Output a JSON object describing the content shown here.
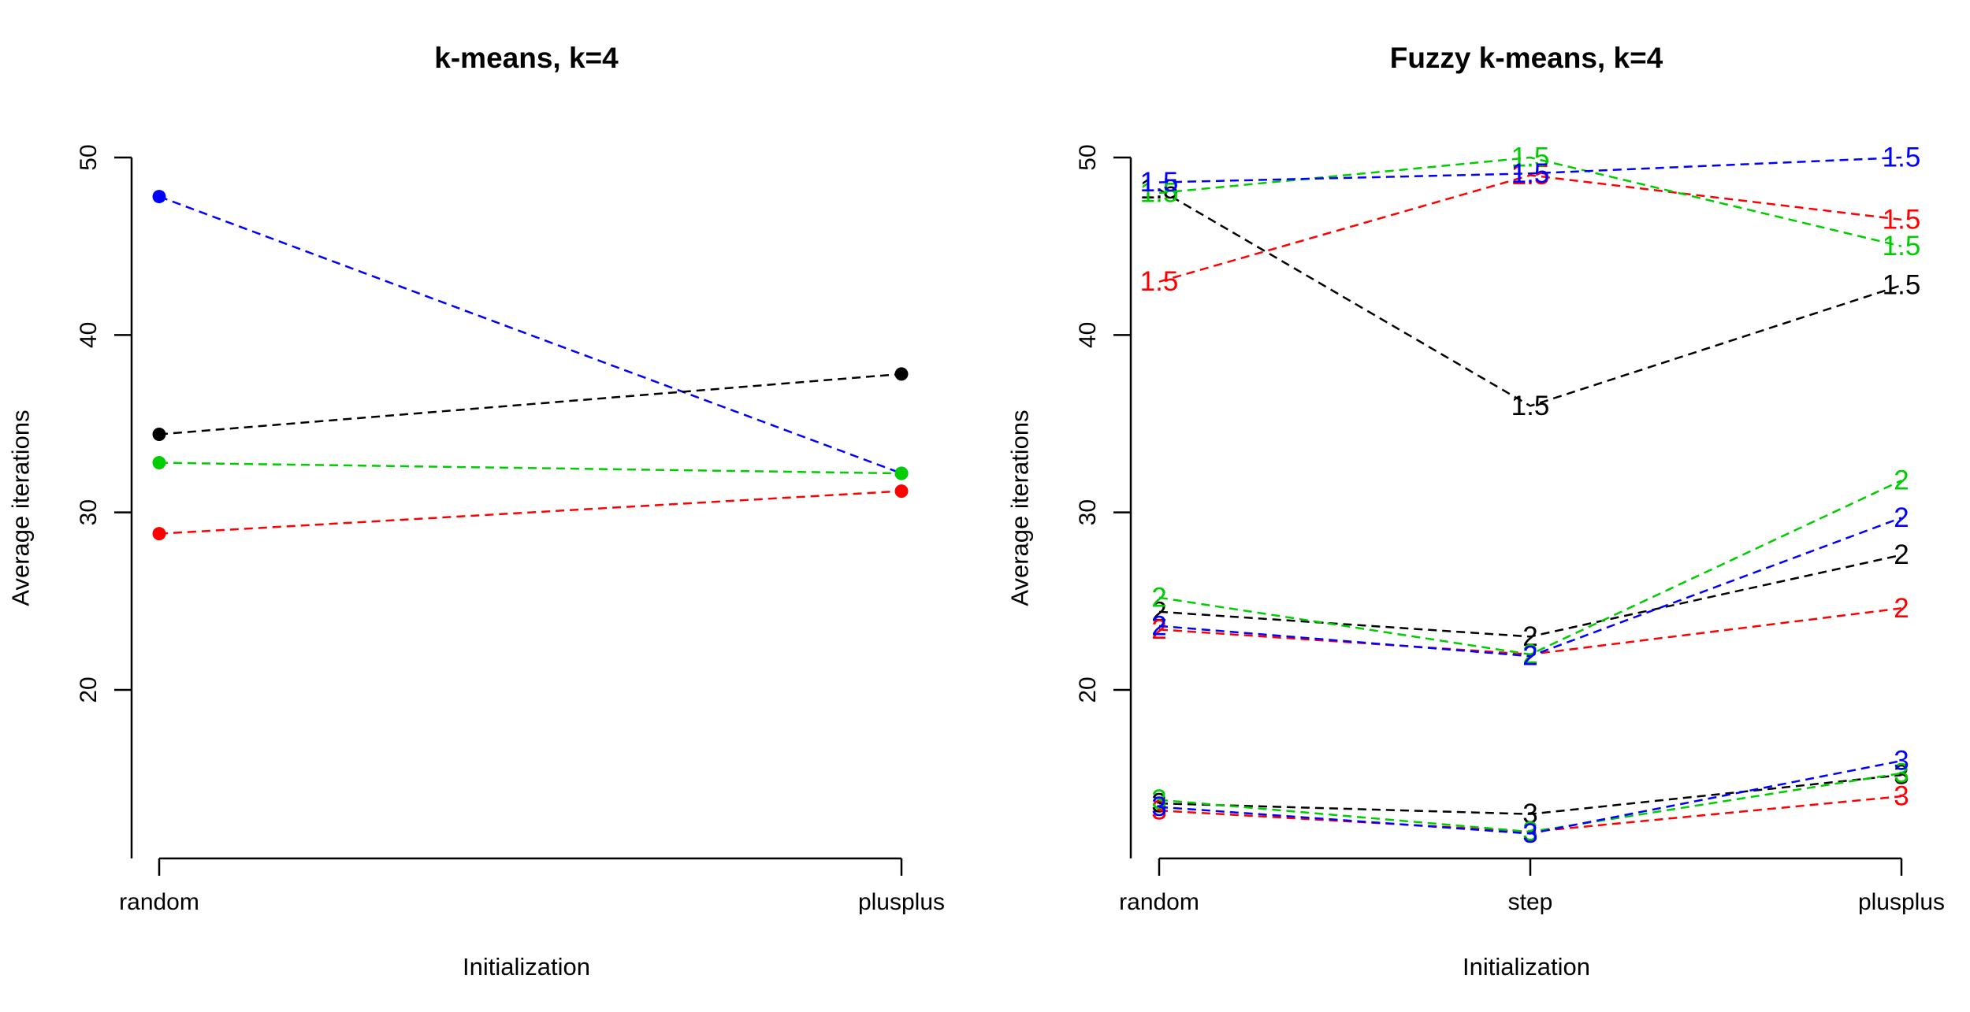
{
  "chart_data": [
    {
      "type": "line",
      "title": "k-means, k=4",
      "xlabel": "Initialization",
      "ylabel": "Average iterations",
      "categories": [
        "random",
        "plusplus"
      ],
      "yticks": [
        20,
        30,
        40,
        50
      ],
      "ylim": [
        10.5,
        50
      ],
      "marker": "point",
      "grid": false,
      "series": [
        {
          "color": "#0000ff",
          "values": [
            47.8,
            32.2
          ]
        },
        {
          "color": "#000000",
          "values": [
            34.4,
            37.8
          ]
        },
        {
          "color": "#00cd00",
          "values": [
            32.8,
            32.2
          ]
        },
        {
          "color": "#ff0000",
          "values": [
            28.8,
            31.2
          ]
        }
      ]
    },
    {
      "type": "line",
      "title": "Fuzzy k-means, k=4",
      "xlabel": "Initialization",
      "ylabel": "Average iterations",
      "categories": [
        "random",
        "step",
        "plusplus"
      ],
      "yticks": [
        20,
        30,
        40,
        50
      ],
      "ylim": [
        10.5,
        50
      ],
      "marker": "text",
      "grid": false,
      "series": [
        {
          "label": "1.5",
          "color": "#000000",
          "values": [
            48.2,
            36.0,
            42.8
          ]
        },
        {
          "label": "1.5",
          "color": "#ff0000",
          "values": [
            43.0,
            49.0,
            46.5
          ]
        },
        {
          "label": "1.5",
          "color": "#00cd00",
          "values": [
            48.0,
            50.0,
            45.0
          ]
        },
        {
          "label": "1.5",
          "color": "#0000ff",
          "values": [
            48.6,
            49.1,
            50.0
          ]
        },
        {
          "label": "2",
          "color": "#000000",
          "values": [
            24.4,
            23.0,
            27.6
          ]
        },
        {
          "label": "2",
          "color": "#ff0000",
          "values": [
            23.4,
            22.0,
            24.6
          ]
        },
        {
          "label": "2",
          "color": "#00cd00",
          "values": [
            25.2,
            22.0,
            31.8
          ]
        },
        {
          "label": "2",
          "color": "#0000ff",
          "values": [
            23.6,
            21.9,
            29.7
          ]
        },
        {
          "label": "3",
          "color": "#000000",
          "values": [
            13.6,
            13.0,
            15.2
          ]
        },
        {
          "label": "3",
          "color": "#ff0000",
          "values": [
            13.2,
            12.0,
            14.0
          ]
        },
        {
          "label": "3",
          "color": "#00cd00",
          "values": [
            13.8,
            12.0,
            15.3
          ]
        },
        {
          "label": "3",
          "color": "#0000ff",
          "values": [
            13.4,
            11.9,
            16.0
          ]
        }
      ]
    }
  ]
}
